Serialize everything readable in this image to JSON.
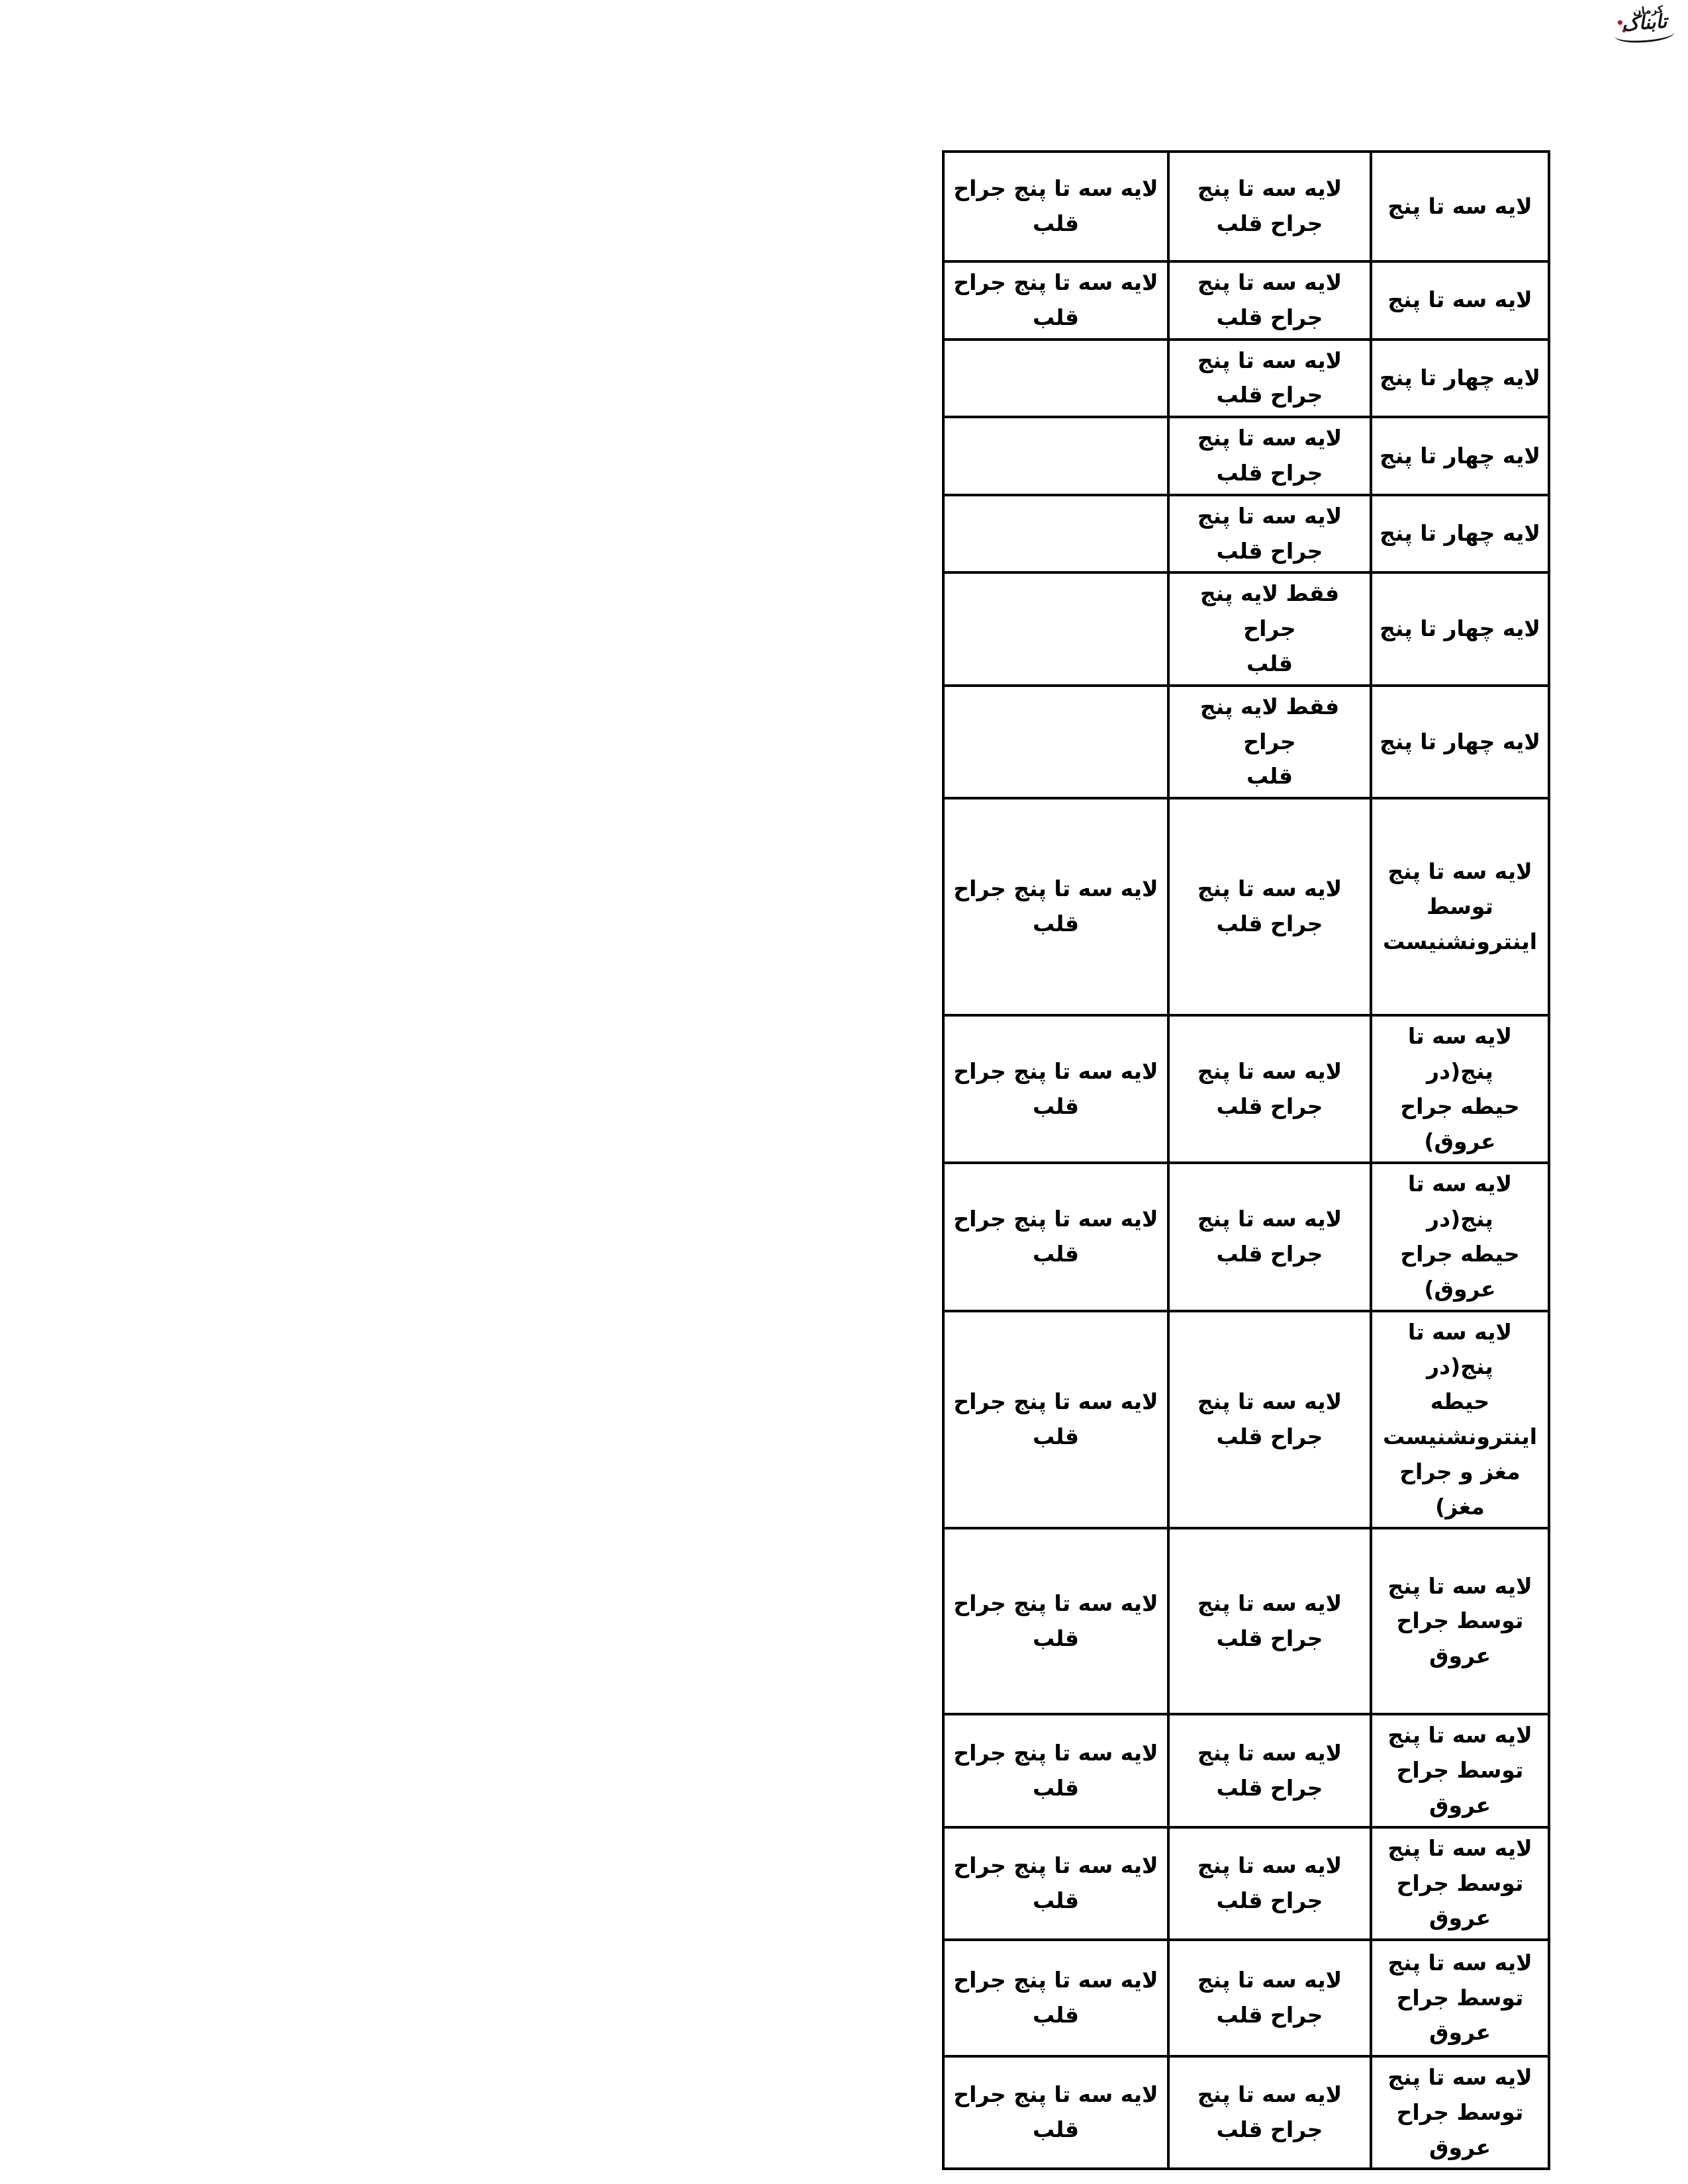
{
  "logo": {
    "brand": "تابناک",
    "region": "کرمان"
  },
  "table": {
    "rows": [
      {
        "right": "لایه سه تا پنج",
        "middle": "لایه سه تا پنج\nجراح قلب",
        "left": "لایه سه تا پنج جراح\nقلب"
      },
      {
        "right": "لایه سه تا پنج",
        "middle": "لایه سه تا پنج\nجراح قلب",
        "left": "لایه سه تا پنج جراح\nقلب"
      },
      {
        "right": "لایه چهار تا پنج",
        "middle": "لایه سه تا پنج\nجراح قلب",
        "left": ""
      },
      {
        "right": "لایه چهار تا پنج",
        "middle": "لایه سه تا پنج\nجراح قلب",
        "left": ""
      },
      {
        "right": "لایه چهار تا پنج",
        "middle": "لایه سه تا پنج\nجراح قلب",
        "left": ""
      },
      {
        "right": "لایه چهار تا پنج",
        "middle": "فقط لایه پنج جراح\nقلب",
        "left": ""
      },
      {
        "right": "لایه چهار تا پنج",
        "middle": "فقط لایه پنج جراح\nقلب",
        "left": ""
      },
      {
        "right": "لایه سه تا پنج\nتوسط\nاینترونشنیست",
        "middle": "لایه سه تا پنج\nجراح قلب",
        "left": "لایه سه تا پنج جراح\nقلب"
      },
      {
        "right": "لایه سه تا پنج(در\nحیطه جراح\nعروق)",
        "middle": "لایه سه تا پنج\nجراح قلب",
        "left": "لایه سه تا پنج جراح\nقلب"
      },
      {
        "right": "لایه سه تا پنج(در\nحیطه جراح\nعروق)",
        "middle": "لایه سه تا پنج\nجراح قلب",
        "left": "لایه سه تا پنج جراح\nقلب"
      },
      {
        "right": "لایه سه تا پنج(در\nحیطه\nاینترونشنیست\nمغز و جراح مغز)",
        "middle": "لایه سه تا پنج\nجراح قلب",
        "left": "لایه سه تا پنج جراح\nقلب"
      },
      {
        "right": "لایه سه تا پنج\nتوسط جراح عروق",
        "middle": "لایه سه تا پنج\nجراح قلب",
        "left": "لایه سه تا پنج جراح\nقلب"
      },
      {
        "right": "لایه سه تا پنج\nتوسط جراح عروق",
        "middle": "لایه سه تا پنج\nجراح قلب",
        "left": "لایه سه تا پنج جراح\nقلب"
      },
      {
        "right": "لایه سه تا پنج\nتوسط جراح عروق",
        "middle": "لایه سه تا پنج\nجراح قلب",
        "left": "لایه سه تا پنج جراح\nقلب"
      },
      {
        "right": "لایه سه تا پنج\nتوسط جراح عروق",
        "middle": "لایه سه تا پنج\nجراح قلب",
        "left": "لایه سه تا پنج جراح\nقلب"
      },
      {
        "right": "لایه سه تا پنج\nتوسط جراح عروق",
        "middle": "لایه سه تا پنج\nجراح قلب",
        "left": "لایه سه تا پنج جراح\nقلب"
      }
    ]
  }
}
